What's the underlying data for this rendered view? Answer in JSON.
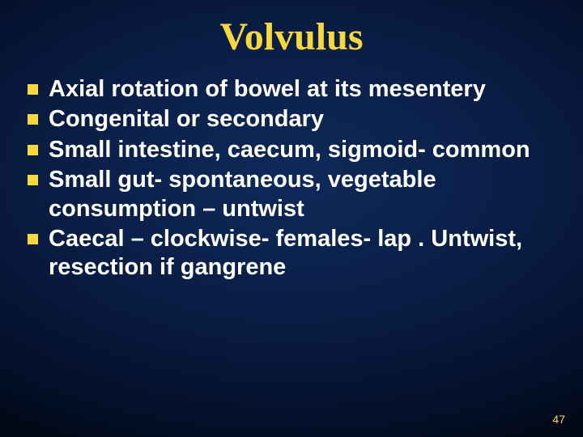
{
  "title": {
    "text": "Volvulus",
    "color": "#f6d83a",
    "fontsize": 48
  },
  "body": {
    "text_color": "#ffffff",
    "fontsize": 29,
    "bullet_color": "#f6d83a",
    "items": [
      "Axial rotation of  bowel  at its mesentery",
      "Congenital or  secondary",
      "Small intestine, caecum, sigmoid- common",
      "Small gut- spontaneous, vegetable consumption – untwist",
      "Caecal – clockwise- females- lap . Untwist, resection if gangrene"
    ]
  },
  "slide_number": {
    "value": "47",
    "color": "#f6d83a"
  },
  "background": {
    "center": "#0e2a5a",
    "edge": "#010814"
  }
}
